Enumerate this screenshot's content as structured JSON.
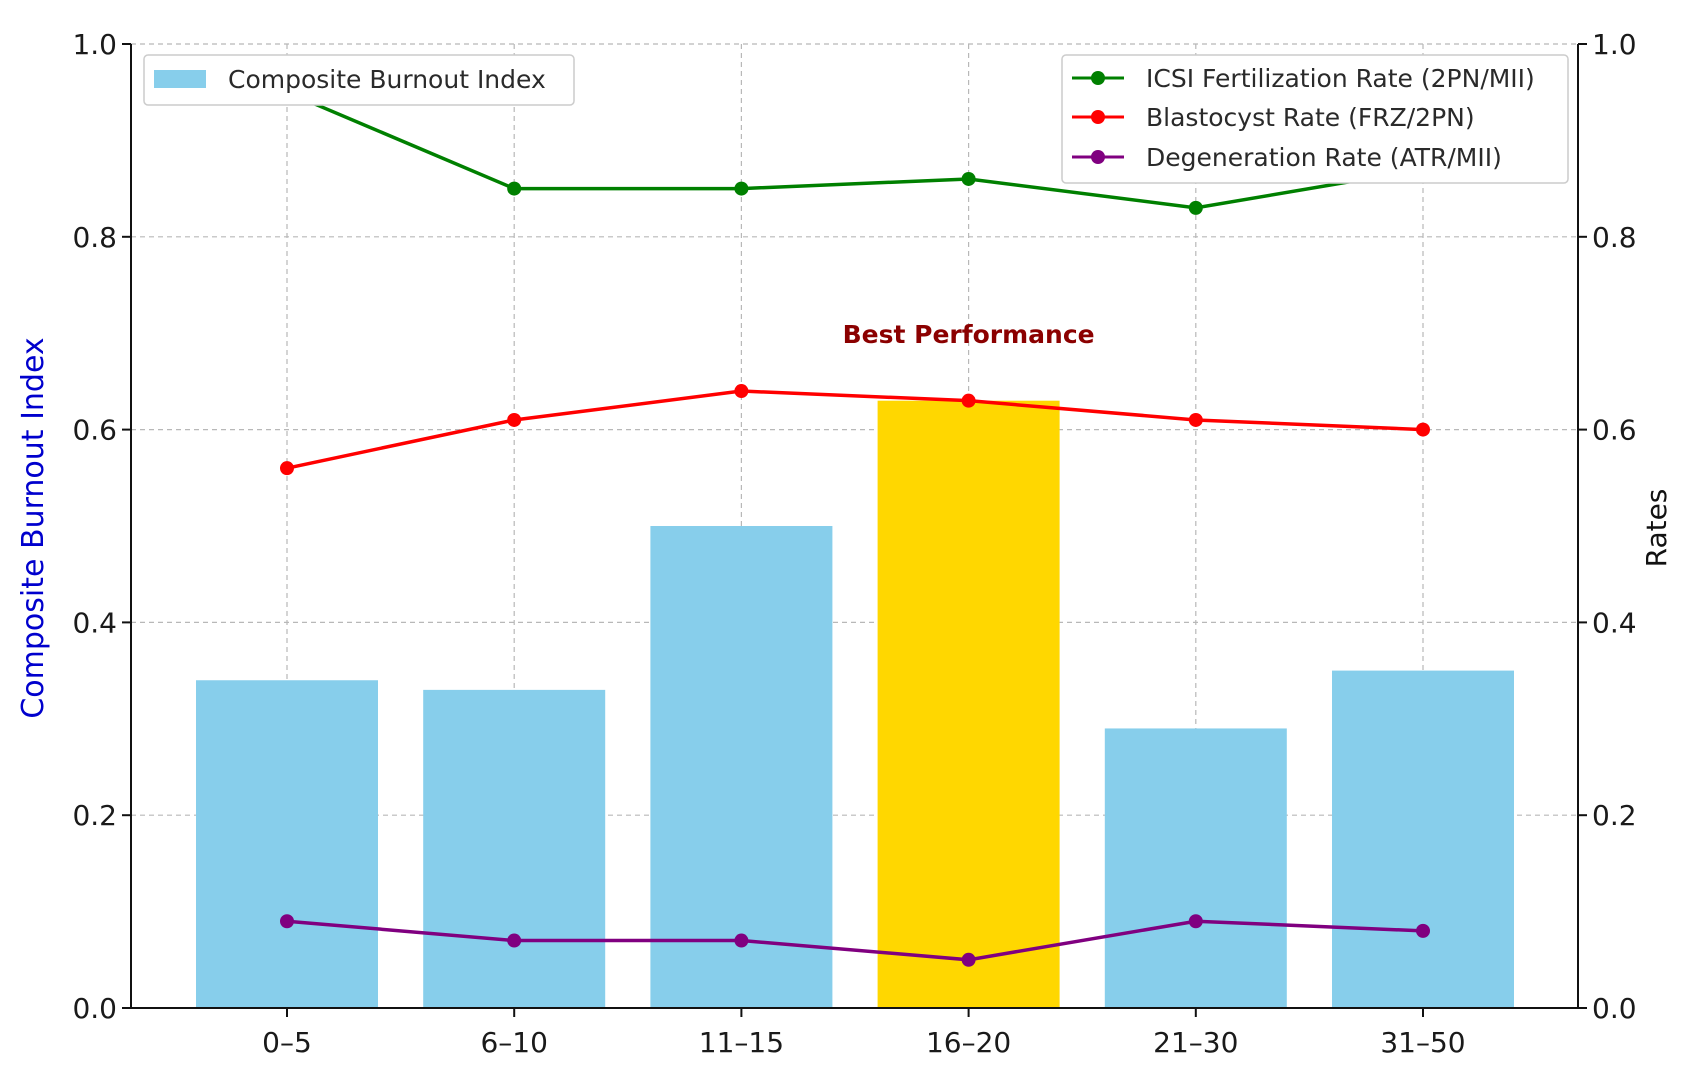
{
  "chart_data": {
    "type": "bar",
    "categories": [
      "0–5",
      "6–10",
      "11–15",
      "16–20",
      "21–30",
      "31–50"
    ],
    "bar_series": {
      "name": "Composite Burnout Index",
      "values": [
        0.34,
        0.33,
        0.5,
        0.63,
        0.29,
        0.35
      ],
      "color": "#87CEEB",
      "highlight_index": 3,
      "highlight_color": "#FFD700"
    },
    "line_series": [
      {
        "name": "ICSI Fertilization Rate (2PN/MII)",
        "values": [
          0.95,
          0.85,
          0.85,
          0.86,
          0.83,
          0.87
        ],
        "color": "#008000"
      },
      {
        "name": "Blastocyst Rate (FRZ/2PN)",
        "values": [
          0.56,
          0.61,
          0.64,
          0.63,
          0.61,
          0.6
        ],
        "color": "#FF0000"
      },
      {
        "name": "Degeneration Rate (ATR/MII)",
        "values": [
          0.09,
          0.07,
          0.07,
          0.05,
          0.09,
          0.08
        ],
        "color": "#800080"
      }
    ],
    "ylabel_left": "Composite Burnout Index",
    "ylabel_left_color": "#0000CD",
    "ylabel_right": "Rates",
    "ylim_left": [
      0,
      1.0
    ],
    "ylim_right": [
      0,
      1.0
    ],
    "yticks": [
      "0.0",
      "0.2",
      "0.4",
      "0.6",
      "0.8",
      "1.0"
    ],
    "annotation": {
      "text": "Best Performance",
      "category_index": 3,
      "y_value": 0.69,
      "color": "#8B0000"
    },
    "grid": true,
    "legend_left_placement": "upper-left",
    "legend_right_placement": "upper-right"
  }
}
